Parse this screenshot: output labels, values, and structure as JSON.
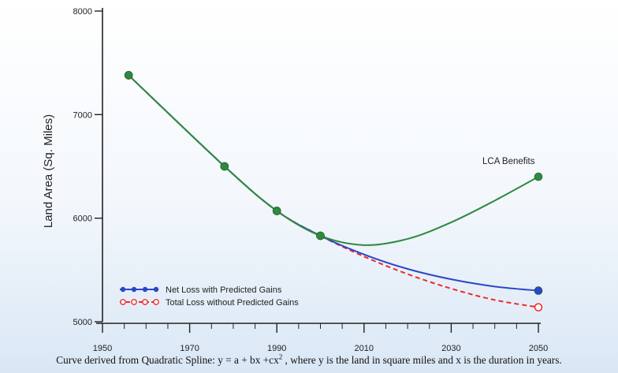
{
  "chart_data": {
    "type": "line",
    "ylabel": "Land Area  (Sq. Miles)",
    "xlabel": "",
    "title": "",
    "xlim": [
      1950,
      2050
    ],
    "ylim": [
      5000,
      8000
    ],
    "x_ticks": [
      1950,
      1970,
      1990,
      2010,
      2030,
      2050
    ],
    "y_ticks": [
      5000,
      6000,
      7000,
      8000
    ],
    "annotations": [
      {
        "text": "LCA Benefits",
        "x": 2050,
        "y": 6400
      }
    ],
    "legend_position": "bottom-left",
    "series": [
      {
        "name": "Net Loss with Predicted Gains",
        "color": "#2b46c7",
        "style": "solid",
        "marker": "filled-circle",
        "x": [
          1956,
          1978,
          1990,
          2000,
          2010,
          2020,
          2030,
          2040,
          2050
        ],
        "y": [
          7380,
          6500,
          6070,
          5830,
          5650,
          5510,
          5410,
          5340,
          5300
        ],
        "markers_at": [
          1956,
          1978,
          1990,
          2000,
          2050
        ]
      },
      {
        "name": "Total Loss without Predicted Gains",
        "color": "#ee2a2a",
        "style": "dashed",
        "marker": "open-circle",
        "x": [
          1956,
          1978,
          1990,
          2000,
          2010,
          2020,
          2030,
          2040,
          2050
        ],
        "y": [
          7380,
          6500,
          6070,
          5830,
          5630,
          5460,
          5320,
          5210,
          5140
        ],
        "markers_at": [
          1956,
          1978,
          1990,
          2000,
          2050
        ]
      },
      {
        "name": "LCA Benefits",
        "color": "#2e8a3e",
        "style": "solid",
        "marker": "filled-circle",
        "x": [
          1956,
          1978,
          1990,
          2000,
          2010,
          2020,
          2030,
          2040,
          2050
        ],
        "y": [
          7380,
          6500,
          6070,
          5830,
          5740,
          5800,
          5960,
          6170,
          6400
        ],
        "markers_at": [
          1956,
          1978,
          1990,
          2000,
          2050
        ]
      }
    ]
  },
  "caption": {
    "part1": "Curve derived from Quadratic Spline: y = a + bx +cx",
    "sup": "2",
    "part2": " , where y is the land in square miles and x is the duration in years."
  }
}
